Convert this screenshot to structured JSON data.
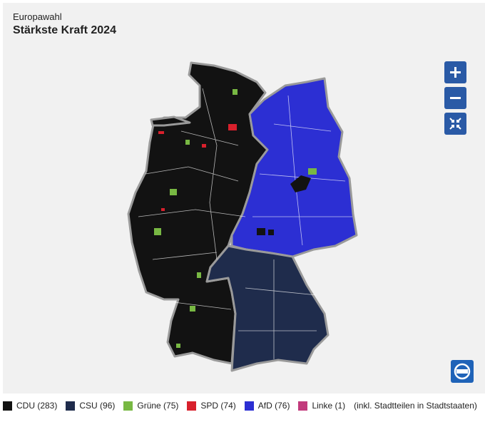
{
  "header": {
    "kicker": "Europawahl",
    "title": "Stärkste Kraft 2024"
  },
  "legend": {
    "items": [
      {
        "label": "CDU (283)",
        "color": "#121212"
      },
      {
        "label": "CSU (96)",
        "color": "#1f2c4c"
      },
      {
        "label": "Grüne (75)",
        "color": "#78b843"
      },
      {
        "label": "SPD (74)",
        "color": "#d8202c"
      },
      {
        "label": "AfD (76)",
        "color": "#2c2fd3"
      },
      {
        "label": "Linke (1)",
        "color": "#c23a7c"
      }
    ],
    "note": "(inkl. Stadtteilen in Stadtstaaten)"
  }
}
